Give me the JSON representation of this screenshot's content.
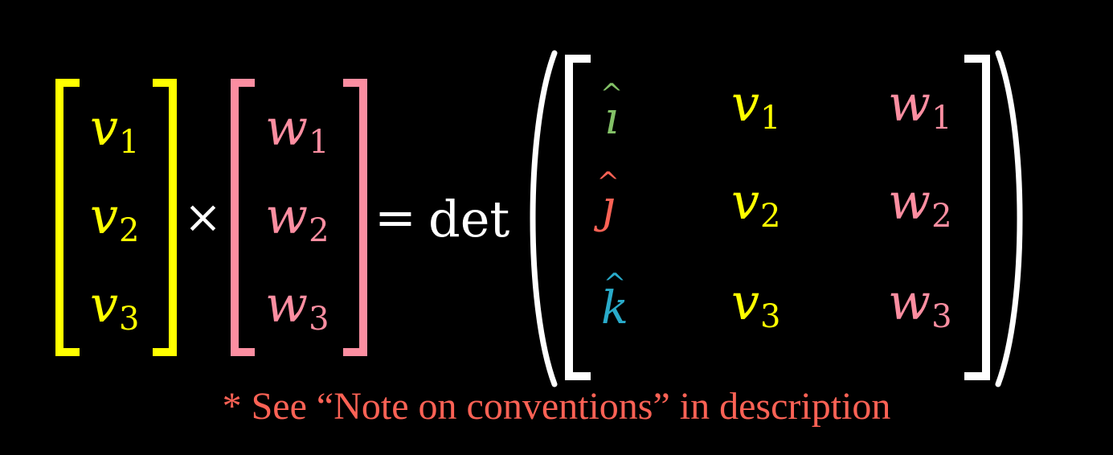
{
  "colors": {
    "background": "#000000",
    "v_vector": "#FFFF00",
    "w_vector": "#FC8EA1",
    "i_hat": "#83C167",
    "j_hat": "#FC6255",
    "k_hat": "#29ABCA",
    "white": "#FFFFFF",
    "note": "#FC6255"
  },
  "equation": {
    "v": {
      "label": "v",
      "components": [
        "1",
        "2",
        "3"
      ]
    },
    "w": {
      "label": "w",
      "components": [
        "1",
        "2",
        "3"
      ]
    },
    "cross_symbol": "×",
    "equals_symbol": "=",
    "det_label": "det",
    "matrix": {
      "basis": [
        {
          "symbol": "ı",
          "hat": "^",
          "name": "i-hat"
        },
        {
          "symbol": "ȷ",
          "hat": "^",
          "name": "j-hat"
        },
        {
          "symbol": "k",
          "hat": "^",
          "name": "k-hat"
        }
      ]
    }
  },
  "footnote": "* See “Note on conventions” in description"
}
